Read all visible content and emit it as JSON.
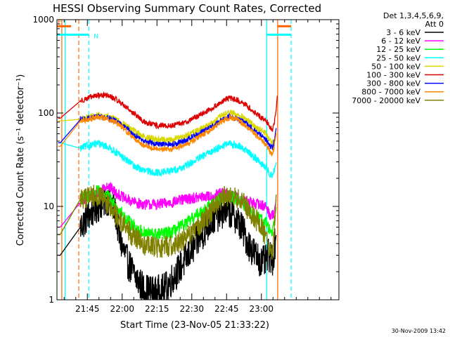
{
  "chart_data": {
    "type": "line",
    "title": "HESSI Observing Summary Count Rates, Corrected",
    "xlabel": "Start Time (23-Nov-05 21:33:22)",
    "ylabel": "Corrected Count Rate (s⁻¹ detector⁻¹)",
    "yscale": "log",
    "ylim": [
      1,
      1000
    ],
    "y_ticks": [
      {
        "v": 1,
        "label": "1"
      },
      {
        "v": 10,
        "label": "10"
      },
      {
        "v": 100,
        "label": "100"
      },
      {
        "v": 1000,
        "label": "1000"
      }
    ],
    "x_range_min": [
      -1.5,
      120
    ],
    "x_ticks": [
      {
        "t": 11.6,
        "label": "21:45"
      },
      {
        "t": 26.6,
        "label": "22:00"
      },
      {
        "t": 41.6,
        "label": "22:15"
      },
      {
        "t": 56.6,
        "label": "22:30"
      },
      {
        "t": 71.6,
        "label": "22:45"
      },
      {
        "t": 86.6,
        "label": "23:00"
      }
    ],
    "legend": {
      "position": "right",
      "header": [
        "Det 1,3,4,5,6,9,",
        "Att 0"
      ],
      "entries": [
        {
          "label": "3 - 6 keV",
          "color": "#000000"
        },
        {
          "label": "6 - 12 keV",
          "color": "#ff00ff"
        },
        {
          "label": "12 - 25 keV",
          "color": "#00ff00"
        },
        {
          "label": "25 - 50 keV",
          "color": "#00ffff"
        },
        {
          "label": "50 - 100 keV",
          "color": "#d8d800"
        },
        {
          "label": "100 - 300 keV",
          "color": "#dd0000"
        },
        {
          "label": "300 - 800 keV",
          "color": "#0000ff"
        },
        {
          "label": "800 - 7000 keV",
          "color": "#ff8800"
        },
        {
          "label": "7000 - 20000 keV",
          "color": "#808000"
        }
      ]
    },
    "flag_bars": [
      {
        "label": "E",
        "color": "#ff6600",
        "y": 850,
        "segments": [
          [
            -1.5,
            4.6
          ],
          [
            93.6,
            99.4
          ]
        ]
      },
      {
        "label": "N",
        "color": "#00ffff",
        "y": 690,
        "segments": [
          [
            -1.5,
            12.2
          ],
          [
            88.9,
            99.4
          ]
        ]
      }
    ],
    "vertical_lines": [
      {
        "t": 0.6,
        "color": "#ff6600",
        "style": "solid"
      },
      {
        "t": 2.0,
        "color": "#00ffff",
        "style": "solid"
      },
      {
        "t": 7.9,
        "color": "#ff6600",
        "style": "dashed"
      },
      {
        "t": 12.2,
        "color": "#00ffff",
        "style": "dashed"
      },
      {
        "t": 88.9,
        "color": "#00ffff",
        "style": "solid"
      },
      {
        "t": 93.6,
        "color": "#ff6600",
        "style": "solid"
      },
      {
        "t": 99.4,
        "color": "#00ffff",
        "style": "dashed"
      }
    ],
    "series": [
      {
        "name": "3 - 6 keV",
        "color": "#000000",
        "jitter": 0.18,
        "points": [
          [
            -1,
            3
          ],
          [
            -0.1,
            3
          ],
          [
            8.6,
            6
          ],
          [
            12,
            8
          ],
          [
            16,
            10
          ],
          [
            20,
            12
          ],
          [
            22,
            11
          ],
          [
            24,
            8
          ],
          [
            25.5,
            4.5
          ],
          [
            27,
            3.5
          ],
          [
            29,
            2.5
          ],
          [
            32,
            1.8
          ],
          [
            36,
            1.3
          ],
          [
            41,
            1.2
          ],
          [
            45,
            1.3
          ],
          [
            49,
            1.8
          ],
          [
            53,
            2.5
          ],
          [
            57,
            3.5
          ],
          [
            61,
            5
          ],
          [
            65,
            7
          ],
          [
            69,
            8.5
          ],
          [
            72,
            9
          ],
          [
            75,
            8
          ],
          [
            78,
            6
          ],
          [
            81,
            4
          ],
          [
            84,
            3
          ],
          [
            87,
            2.5
          ],
          [
            88.5,
            2.6
          ],
          [
            89.5,
            3
          ],
          [
            90.5,
            2.8
          ],
          [
            91.5,
            2.7
          ],
          [
            93,
            5
          ]
        ]
      },
      {
        "name": "6 - 12 keV",
        "color": "#ff00ff",
        "jitter": 0.06,
        "points": [
          [
            -1,
            6
          ],
          [
            -0.1,
            6
          ],
          [
            8.6,
            11
          ],
          [
            12,
            13
          ],
          [
            16,
            14
          ],
          [
            20,
            17
          ],
          [
            24,
            14
          ],
          [
            28,
            12
          ],
          [
            32,
            11
          ],
          [
            36,
            10.5
          ],
          [
            42,
            10.5
          ],
          [
            48,
            11
          ],
          [
            54,
            12
          ],
          [
            60,
            12.5
          ],
          [
            66,
            13
          ],
          [
            70,
            14
          ],
          [
            74,
            13
          ],
          [
            78,
            12
          ],
          [
            82,
            11
          ],
          [
            86,
            10.5
          ],
          [
            88.5,
            10
          ],
          [
            89.5,
            9
          ],
          [
            90.5,
            8
          ],
          [
            91.5,
            8
          ],
          [
            92.5,
            10
          ],
          [
            93,
            12
          ]
        ]
      },
      {
        "name": "12 - 25 keV",
        "color": "#00ff00",
        "jitter": 0.07,
        "points": [
          [
            -1,
            5
          ],
          [
            -0.1,
            5
          ],
          [
            8.6,
            12
          ],
          [
            12,
            13
          ],
          [
            16,
            14.5
          ],
          [
            20,
            13
          ],
          [
            24,
            10
          ],
          [
            28,
            7.5
          ],
          [
            32,
            6
          ],
          [
            36,
            5.2
          ],
          [
            42,
            5
          ],
          [
            48,
            5.3
          ],
          [
            54,
            6.5
          ],
          [
            60,
            8.5
          ],
          [
            66,
            11
          ],
          [
            70,
            12.5
          ],
          [
            73,
            13
          ],
          [
            76,
            12
          ],
          [
            80,
            10
          ],
          [
            84,
            8
          ],
          [
            87,
            7
          ],
          [
            88.5,
            6.8
          ],
          [
            89.5,
            6
          ],
          [
            90.5,
            5.5
          ],
          [
            91.5,
            5.6
          ],
          [
            92.5,
            8
          ],
          [
            93,
            10
          ]
        ]
      },
      {
        "name": "25 - 50 keV",
        "color": "#00ffff",
        "jitter": 0.04,
        "points": [
          [
            -1,
            48
          ],
          [
            -0.1,
            48
          ],
          [
            8.6,
            42
          ],
          [
            12,
            45
          ],
          [
            16,
            47
          ],
          [
            20,
            44
          ],
          [
            24,
            38
          ],
          [
            28,
            32
          ],
          [
            32,
            27
          ],
          [
            36,
            24
          ],
          [
            42,
            23
          ],
          [
            48,
            24
          ],
          [
            54,
            27
          ],
          [
            60,
            33
          ],
          [
            66,
            40
          ],
          [
            70,
            45
          ],
          [
            73,
            47
          ],
          [
            76,
            45
          ],
          [
            80,
            40
          ],
          [
            84,
            33
          ],
          [
            87,
            28
          ],
          [
            88.5,
            26
          ],
          [
            89.5,
            24
          ],
          [
            90.5,
            22
          ],
          [
            91.5,
            22
          ],
          [
            92.5,
            26
          ],
          [
            93,
            30
          ]
        ]
      },
      {
        "name": "50 - 100 keV",
        "color": "#d8d800",
        "jitter": 0.035,
        "points": [
          [
            -1,
            82
          ],
          [
            -0.1,
            82
          ],
          [
            8.6,
            86
          ],
          [
            12,
            90
          ],
          [
            16,
            94
          ],
          [
            20,
            92
          ],
          [
            24,
            84
          ],
          [
            28,
            74
          ],
          [
            32,
            64
          ],
          [
            36,
            56
          ],
          [
            42,
            52
          ],
          [
            48,
            52
          ],
          [
            54,
            57
          ],
          [
            60,
            67
          ],
          [
            66,
            80
          ],
          [
            70,
            95
          ],
          [
            73,
            102
          ],
          [
            76,
            96
          ],
          [
            80,
            85
          ],
          [
            84,
            72
          ],
          [
            87,
            64
          ],
          [
            88.5,
            60
          ],
          [
            89.5,
            56
          ],
          [
            90.5,
            50
          ],
          [
            91.5,
            48
          ],
          [
            92.5,
            56
          ],
          [
            93,
            62
          ]
        ]
      },
      {
        "name": "100 - 300 keV",
        "color": "#dd0000",
        "jitter": 0.03,
        "points": [
          [
            -1,
            88
          ],
          [
            -0.1,
            88
          ],
          [
            8.6,
            135
          ],
          [
            12,
            145
          ],
          [
            16,
            155
          ],
          [
            20,
            155
          ],
          [
            24,
            140
          ],
          [
            28,
            118
          ],
          [
            32,
            97
          ],
          [
            36,
            80
          ],
          [
            42,
            73
          ],
          [
            48,
            73
          ],
          [
            54,
            80
          ],
          [
            60,
            95
          ],
          [
            66,
            115
          ],
          [
            70,
            135
          ],
          [
            73,
            145
          ],
          [
            76,
            138
          ],
          [
            80,
            122
          ],
          [
            84,
            100
          ],
          [
            87,
            88
          ],
          [
            88.5,
            84
          ],
          [
            89.5,
            78
          ],
          [
            90.5,
            70
          ],
          [
            91.5,
            66
          ],
          [
            92.5,
            90
          ],
          [
            93,
            110
          ],
          [
            93.5,
            160
          ]
        ]
      },
      {
        "name": "300 - 800 keV",
        "color": "#0000ff",
        "jitter": 0.03,
        "points": [
          [
            -1,
            48
          ],
          [
            -0.1,
            48
          ],
          [
            8.6,
            85
          ],
          [
            12,
            88
          ],
          [
            16,
            92
          ],
          [
            20,
            90
          ],
          [
            24,
            82
          ],
          [
            28,
            70
          ],
          [
            32,
            58
          ],
          [
            36,
            50
          ],
          [
            42,
            46
          ],
          [
            48,
            46
          ],
          [
            54,
            51
          ],
          [
            60,
            60
          ],
          [
            66,
            74
          ],
          [
            70,
            86
          ],
          [
            73,
            92
          ],
          [
            76,
            88
          ],
          [
            80,
            78
          ],
          [
            84,
            64
          ],
          [
            87,
            56
          ],
          [
            88.5,
            52
          ],
          [
            89.5,
            48
          ],
          [
            90.5,
            44
          ],
          [
            91.5,
            42
          ],
          [
            92.5,
            58
          ],
          [
            93,
            70
          ]
        ]
      },
      {
        "name": "800 - 7000 keV",
        "color": "#ff8800",
        "jitter": 0.03,
        "points": [
          [
            -1,
            44
          ],
          [
            -0.1,
            44
          ],
          [
            8.6,
            82
          ],
          [
            12,
            86
          ],
          [
            16,
            90
          ],
          [
            20,
            88
          ],
          [
            24,
            78
          ],
          [
            28,
            66
          ],
          [
            32,
            53
          ],
          [
            36,
            45
          ],
          [
            42,
            41
          ],
          [
            48,
            41
          ],
          [
            54,
            46
          ],
          [
            60,
            56
          ],
          [
            66,
            70
          ],
          [
            70,
            83
          ],
          [
            73,
            90
          ],
          [
            76,
            85
          ],
          [
            80,
            73
          ],
          [
            84,
            59
          ],
          [
            87,
            50
          ],
          [
            88.5,
            46
          ],
          [
            89.5,
            42
          ],
          [
            90.5,
            38
          ],
          [
            91.5,
            36
          ],
          [
            92.5,
            50
          ],
          [
            93,
            62
          ]
        ]
      },
      {
        "name": "7000 - 20000 keV",
        "color": "#808000",
        "jitter": 0.12,
        "points": [
          [
            -1,
            5
          ],
          [
            -0.1,
            5
          ],
          [
            8.6,
            12
          ],
          [
            12,
            13
          ],
          [
            16,
            13
          ],
          [
            20,
            11
          ],
          [
            24,
            8
          ],
          [
            28,
            6
          ],
          [
            32,
            4.6
          ],
          [
            36,
            3.9
          ],
          [
            42,
            3.6
          ],
          [
            48,
            3.8
          ],
          [
            54,
            4.6
          ],
          [
            60,
            6.3
          ],
          [
            66,
            9.5
          ],
          [
            70,
            12.5
          ],
          [
            73,
            13.5
          ],
          [
            76,
            12.5
          ],
          [
            80,
            10
          ],
          [
            84,
            7.5
          ],
          [
            87,
            5.5
          ],
          [
            88.5,
            4.8
          ],
          [
            89.5,
            4
          ],
          [
            90.5,
            3.3
          ],
          [
            91.5,
            3.3
          ],
          [
            92.5,
            8
          ],
          [
            93,
            14
          ]
        ]
      }
    ]
  },
  "timestamp": "30-Nov-2009 13:42"
}
